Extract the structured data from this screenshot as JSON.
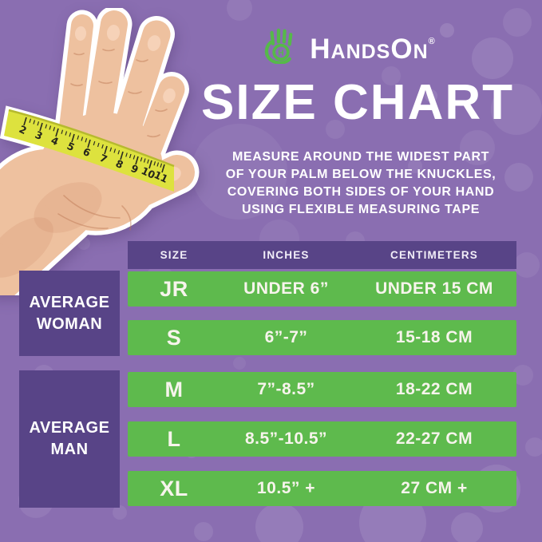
{
  "theme": {
    "bg": "#8a6eb1",
    "panel": "#584487",
    "green": "#5eba4d",
    "logo_green": "#56b94a",
    "tape_yellow": "#dde23e",
    "skin": "#eec19f",
    "text_white": "#ffffff",
    "text_cream": "#f7f4ec"
  },
  "logo": {
    "brand": "HandsOn",
    "registered": "®",
    "icon": "green hand with H in palm"
  },
  "header": {
    "title": "SIZE CHART"
  },
  "instructions": {
    "lines": [
      "MEASURE AROUND THE WIDEST PART",
      "OF YOUR PALM BELOW THE KNUCKLES,",
      "COVERING BOTH SIDES OF YOUR HAND",
      "USING FLEXIBLE MEASURING TAPE"
    ]
  },
  "hand": {
    "description": "open hand with yellow measuring tape wrapped around palm",
    "tape_numbers": [
      "2",
      "3",
      "4",
      "5",
      "6",
      "7",
      "8",
      "9",
      "10",
      "11"
    ]
  },
  "size_table": {
    "columns": [
      "SIZE",
      "INCHES",
      "CENTIMETERS"
    ],
    "groups": [
      {
        "label_lines": [
          "AVERAGE",
          "WOMAN"
        ],
        "rows": [
          {
            "size": "JR",
            "inches": "UNDER 6”",
            "centimeters": "UNDER 15 CM"
          },
          {
            "size": "S",
            "inches": "6”-7”",
            "centimeters": "15-18 CM"
          }
        ]
      },
      {
        "label_lines": [
          "AVERAGE",
          "MAN"
        ],
        "rows": [
          {
            "size": "M",
            "inches": "7”-8.5”",
            "centimeters": "18-22 CM"
          },
          {
            "size": "L",
            "inches": "8.5”-10.5”",
            "centimeters": "22-27 CM"
          },
          {
            "size": "XL",
            "inches": "10.5” +",
            "centimeters": "27 CM +"
          }
        ]
      }
    ]
  }
}
